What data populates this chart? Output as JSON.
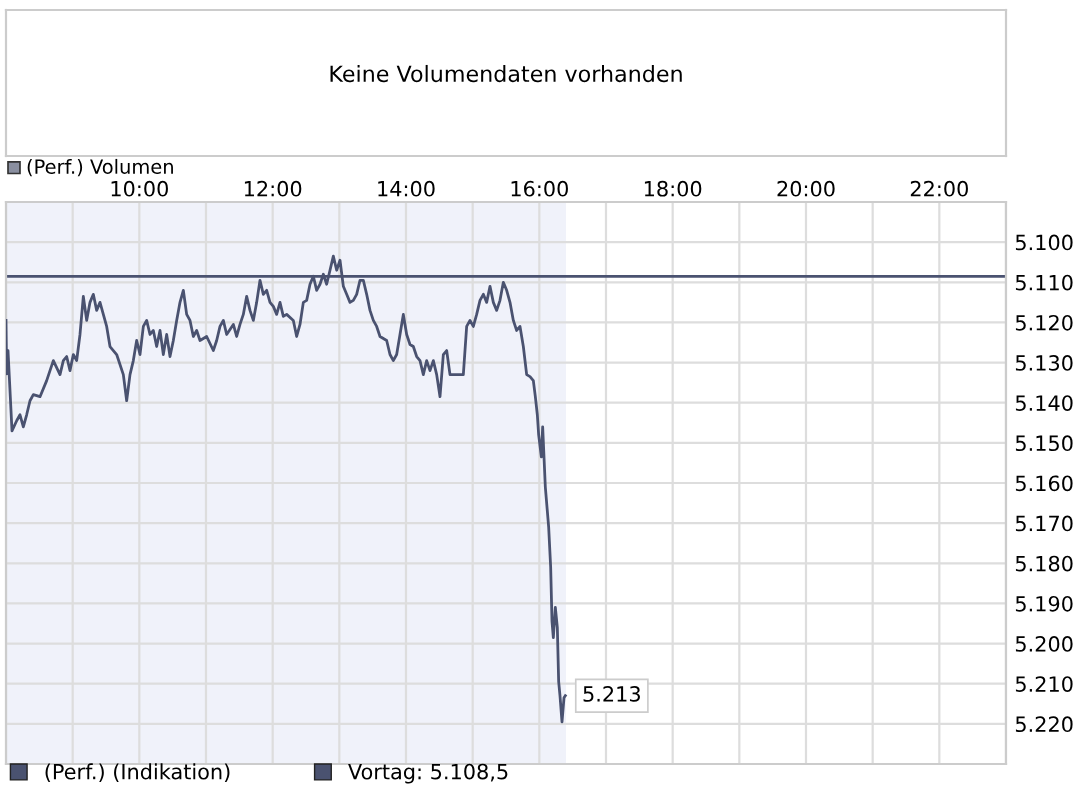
{
  "chart_data": [
    {
      "type": "other",
      "annotations": [
        "Keine Volumendaten vorhanden",
        "(Perf.) Volumen"
      ]
    },
    {
      "type": "line",
      "xlim": [
        8,
        23
      ],
      "ylim": [
        5230,
        5090
      ],
      "xticks": [
        {
          "value": 8,
          "label": null
        },
        {
          "value": 9,
          "label": null
        },
        {
          "value": 10,
          "label": "10:00"
        },
        {
          "value": 11,
          "label": null
        },
        {
          "value": 12,
          "label": "12:00"
        },
        {
          "value": 13,
          "label": null
        },
        {
          "value": 14,
          "label": "14:00"
        },
        {
          "value": 15,
          "label": null
        },
        {
          "value": 16,
          "label": "16:00"
        },
        {
          "value": 17,
          "label": null
        },
        {
          "value": 18,
          "label": "18:00"
        },
        {
          "value": 19,
          "label": null
        },
        {
          "value": 20,
          "label": "20:00"
        },
        {
          "value": 21,
          "label": null
        },
        {
          "value": 22,
          "label": "22:00"
        },
        {
          "value": 23,
          "label": null
        }
      ],
      "yticks": [
        {
          "value": 5100,
          "label": "5.100"
        },
        {
          "value": 5110,
          "label": "5.110"
        },
        {
          "value": 5120,
          "label": "5.120"
        },
        {
          "value": 5130,
          "label": "5.130"
        },
        {
          "value": 5140,
          "label": "5.140"
        },
        {
          "value": 5150,
          "label": "5.150"
        },
        {
          "value": 5160,
          "label": "5.160"
        },
        {
          "value": 5170,
          "label": "5.170"
        },
        {
          "value": 5180,
          "label": "5.180"
        },
        {
          "value": 5190,
          "label": "5.190"
        },
        {
          "value": 5200,
          "label": "5.200"
        },
        {
          "value": 5210,
          "label": "5.210"
        },
        {
          "value": 5220,
          "label": "5.220"
        }
      ],
      "grid": true,
      "legend": "bottom",
      "series": [
        {
          "name": "(Perf.) (Indikation)",
          "color": "#4a5270",
          "x": [
            8.0,
            8.01,
            8.03,
            8.09,
            8.16,
            8.21,
            8.26,
            8.31,
            8.36,
            8.41,
            8.51,
            8.61,
            8.71,
            8.81,
            8.86,
            8.91,
            8.96,
            9.01,
            9.06,
            9.11,
            9.16,
            9.21,
            9.26,
            9.31,
            9.36,
            9.41,
            9.51,
            9.56,
            9.66,
            9.76,
            9.81,
            9.86,
            9.91,
            9.96,
            10.01,
            10.06,
            10.11,
            10.16,
            10.21,
            10.26,
            10.31,
            10.36,
            10.41,
            10.46,
            10.51,
            10.56,
            10.61,
            10.66,
            10.71,
            10.76,
            10.81,
            10.86,
            10.91,
            11.01,
            11.11,
            11.16,
            11.21,
            11.26,
            11.31,
            11.41,
            11.46,
            11.51,
            11.56,
            11.61,
            11.66,
            11.71,
            11.76,
            11.81,
            11.86,
            11.91,
            11.96,
            12.01,
            12.06,
            12.11,
            12.16,
            12.21,
            12.31,
            12.36,
            12.41,
            12.46,
            12.51,
            12.56,
            12.61,
            12.66,
            12.71,
            12.76,
            12.81,
            12.86,
            12.91,
            12.96,
            13.01,
            13.06,
            13.11,
            13.16,
            13.21,
            13.26,
            13.31,
            13.36,
            13.41,
            13.46,
            13.51,
            13.56,
            13.61,
            13.71,
            13.76,
            13.81,
            13.86,
            13.91,
            13.96,
            14.01,
            14.06,
            14.11,
            14.16,
            14.21,
            14.26,
            14.31,
            14.36,
            14.41,
            14.46,
            14.51,
            14.56,
            14.61,
            14.66,
            14.86,
            14.91,
            14.96,
            15.01,
            15.06,
            15.11,
            15.16,
            15.21,
            15.26,
            15.31,
            15.36,
            15.41,
            15.46,
            15.51,
            15.56,
            15.61,
            15.66,
            15.71,
            15.76,
            15.81,
            15.86,
            15.91,
            15.94,
            15.97,
            15.99,
            16.03,
            16.05,
            16.09,
            16.14,
            16.17,
            16.19,
            16.21,
            16.24,
            16.27,
            16.29,
            16.31,
            16.34,
            16.37,
            16.39
          ],
          "values": [
            5119.5,
            5132.8,
            5127,
            5147,
            5144.5,
            5143,
            5146,
            5143,
            5139.5,
            5138,
            5138.5,
            5134.5,
            5129.5,
            5133,
            5129.5,
            5128.5,
            5132,
            5128,
            5129.5,
            5123,
            5113.5,
            5119.5,
            5115,
            5113,
            5117,
            5115,
            5121,
            5126,
            5128,
            5133,
            5139.5,
            5133,
            5129.5,
            5124.5,
            5128,
            5121,
            5119.5,
            5123,
            5122,
            5126,
            5122,
            5128,
            5123,
            5128.5,
            5124.5,
            5119.5,
            5115,
            5112,
            5118,
            5119.5,
            5123.5,
            5122,
            5124.5,
            5123.5,
            5127,
            5124.5,
            5121,
            5119.5,
            5123,
            5120.5,
            5123.5,
            5120.5,
            5118,
            5113.5,
            5117,
            5119.5,
            5115,
            5109.5,
            5113,
            5112,
            5115,
            5116,
            5118,
            5115,
            5118.5,
            5118,
            5119.5,
            5123.5,
            5120.5,
            5115,
            5114.5,
            5110.5,
            5108.5,
            5112,
            5110.5,
            5108,
            5110.5,
            5107,
            5103.5,
            5107,
            5104.5,
            5111,
            5113,
            5115,
            5114.5,
            5113,
            5109.5,
            5109.5,
            5113,
            5117,
            5119.5,
            5121,
            5123.5,
            5124.5,
            5128,
            5129.5,
            5128,
            5123,
            5118,
            5123,
            5125.5,
            5126,
            5128.5,
            5129.5,
            5133,
            5129.5,
            5132,
            5129.5,
            5133,
            5138.5,
            5128,
            5127,
            5133,
            5133,
            5121,
            5119.5,
            5121,
            5118,
            5114.5,
            5113,
            5115,
            5111,
            5115,
            5117,
            5114.5,
            5110,
            5112,
            5115,
            5119.5,
            5122,
            5121,
            5126,
            5133,
            5133.5,
            5134.5,
            5138.5,
            5143,
            5148,
            5153.5,
            5146,
            5161,
            5171,
            5181,
            5194.5,
            5198.5,
            5191,
            5196,
            5209.5,
            5213,
            5219.5,
            5213.5,
            5213
          ]
        }
      ],
      "ref_lines": [
        {
          "axis": "y",
          "value": 5108.5,
          "label": "Vortag: 5.108,5",
          "color": "#4a5270"
        }
      ],
      "bands": [
        {
          "axis": "x",
          "from": 8,
          "to": 16.4,
          "color": "#f0f2fa"
        }
      ],
      "annotations": [
        {
          "text": "5.213",
          "x": 16.39,
          "y": 5213
        }
      ]
    }
  ]
}
